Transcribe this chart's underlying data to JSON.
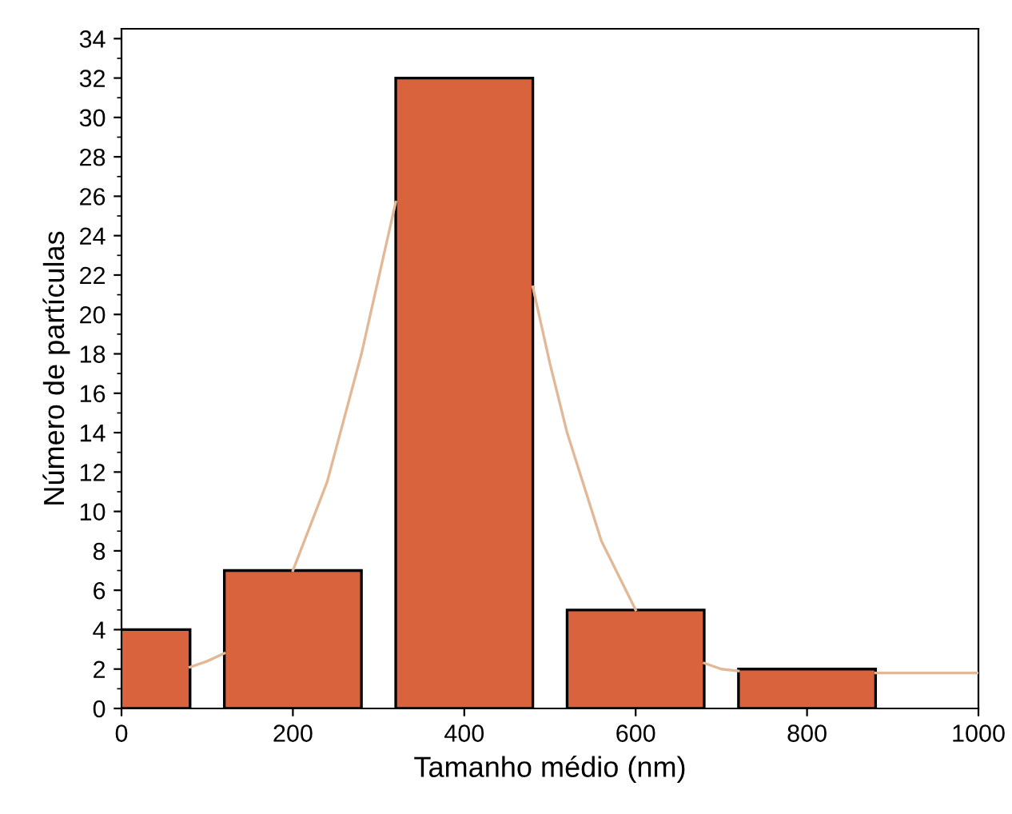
{
  "chart_data": {
    "type": "bar",
    "xlabel": "Tamanho médio (nm)",
    "ylabel": "Número de partículas",
    "x": [
      0,
      200,
      400,
      600,
      800
    ],
    "series": [
      {
        "color": "#d9633d",
        "values": [
          4,
          7,
          32,
          5,
          2
        ]
      },
      {
        "type": "line",
        "color": "#e2b896",
        "x": [
          80,
          100,
          120,
          160,
          200,
          240,
          280,
          320,
          400,
          480,
          500,
          520,
          560,
          600,
          640,
          680,
          700,
          720,
          800,
          880,
          920,
          960,
          1000
        ],
        "values": [
          2.1,
          2.4,
          2.8,
          null,
          7,
          11.5,
          18,
          25.7,
          null,
          21.4,
          17.5,
          14,
          8.5,
          5,
          null,
          2.3,
          2.0,
          1.9,
          null,
          1.8,
          1.8,
          1.8,
          1.8
        ]
      }
    ],
    "xlim": [
      0,
      1000
    ],
    "xticks": [
      0,
      200,
      400,
      600,
      800,
      1000
    ],
    "ylim": [
      0,
      34.5
    ],
    "yticks": [
      0,
      2,
      4,
      6,
      8,
      10,
      12,
      14,
      16,
      18,
      20,
      22,
      24,
      26,
      28,
      30,
      32,
      34
    ],
    "grid": false,
    "legend": false
  }
}
